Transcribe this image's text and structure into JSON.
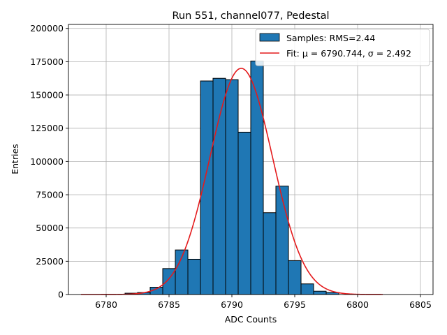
{
  "chart_data": {
    "type": "bar",
    "title": "Run 551, channel077, Pedestal",
    "xlabel": "ADC Counts",
    "ylabel": "Entries",
    "xlim": [
      6777,
      6806
    ],
    "ylim": [
      0,
      203000
    ],
    "x_ticks": [
      6780,
      6785,
      6790,
      6795,
      6800,
      6805
    ],
    "y_ticks": [
      0,
      25000,
      50000,
      75000,
      100000,
      125000,
      150000,
      175000,
      200000
    ],
    "grid": true,
    "legend_position": "top-right",
    "bin_width": 1,
    "series": [
      {
        "name": "Samples: RMS=2.44",
        "kind": "histogram",
        "color": "#1f77b4",
        "bins": [
          {
            "x": 6782,
            "count": 1000
          },
          {
            "x": 6783,
            "count": 1500
          },
          {
            "x": 6784,
            "count": 5500
          },
          {
            "x": 6785,
            "count": 19500
          },
          {
            "x": 6786,
            "count": 33500
          },
          {
            "x": 6787,
            "count": 26500
          },
          {
            "x": 6788,
            "count": 160500
          },
          {
            "x": 6789,
            "count": 162500
          },
          {
            "x": 6790,
            "count": 161500
          },
          {
            "x": 6791,
            "count": 122000
          },
          {
            "x": 6792,
            "count": 175500
          },
          {
            "x": 6793,
            "count": 61500
          },
          {
            "x": 6794,
            "count": 81500
          },
          {
            "x": 6795,
            "count": 25500
          },
          {
            "x": 6796,
            "count": 8000
          },
          {
            "x": 6797,
            "count": 2500
          },
          {
            "x": 6798,
            "count": 1500
          }
        ]
      },
      {
        "name": "Fit: μ = 6790.744, σ = 2.492",
        "kind": "gaussian-fit",
        "color": "#e41a1c",
        "mu": 6790.744,
        "sigma": 2.492,
        "amplitude": 170000,
        "x_range": [
          6778,
          6802
        ]
      }
    ]
  }
}
